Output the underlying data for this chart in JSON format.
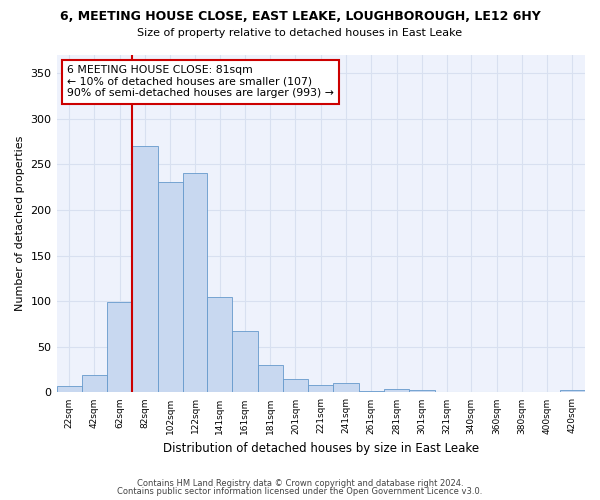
{
  "title": "6, MEETING HOUSE CLOSE, EAST LEAKE, LOUGHBOROUGH, LE12 6HY",
  "subtitle": "Size of property relative to detached houses in East Leake",
  "xlabel": "Distribution of detached houses by size in East Leake",
  "ylabel": "Number of detached properties",
  "bar_color": "#c8d8f0",
  "bar_edge_color": "#6699cc",
  "bar_edge_width": 0.6,
  "bin_labels": [
    "22sqm",
    "42sqm",
    "62sqm",
    "82sqm",
    "102sqm",
    "122sqm",
    "141sqm",
    "161sqm",
    "181sqm",
    "201sqm",
    "221sqm",
    "241sqm",
    "261sqm",
    "281sqm",
    "301sqm",
    "321sqm",
    "340sqm",
    "360sqm",
    "380sqm",
    "400sqm",
    "420sqm"
  ],
  "bar_heights": [
    7,
    19,
    99,
    270,
    231,
    241,
    105,
    67,
    30,
    15,
    8,
    10,
    2,
    4,
    3,
    0,
    0,
    0,
    0,
    0,
    3
  ],
  "bin_left_edges": [
    22,
    42,
    62,
    82,
    102,
    122,
    141,
    161,
    181,
    201,
    221,
    241,
    261,
    281,
    301,
    321,
    340,
    360,
    380,
    400,
    420
  ],
  "bin_widths": [
    20,
    20,
    20,
    20,
    20,
    19,
    20,
    20,
    20,
    20,
    20,
    20,
    20,
    20,
    20,
    19,
    20,
    20,
    20,
    20,
    20
  ],
  "ylim": [
    0,
    370
  ],
  "yticks": [
    0,
    50,
    100,
    150,
    200,
    250,
    300,
    350
  ],
  "vline_x": 82,
  "vline_color": "#cc0000",
  "annotation_box_text": "6 MEETING HOUSE CLOSE: 81sqm\n← 10% of detached houses are smaller (107)\n90% of semi-detached houses are larger (993) →",
  "grid_color": "#d8e0f0",
  "bg_color": "#eef2fc",
  "footer_line1": "Contains HM Land Registry data © Crown copyright and database right 2024.",
  "footer_line2": "Contains public sector information licensed under the Open Government Licence v3.0."
}
